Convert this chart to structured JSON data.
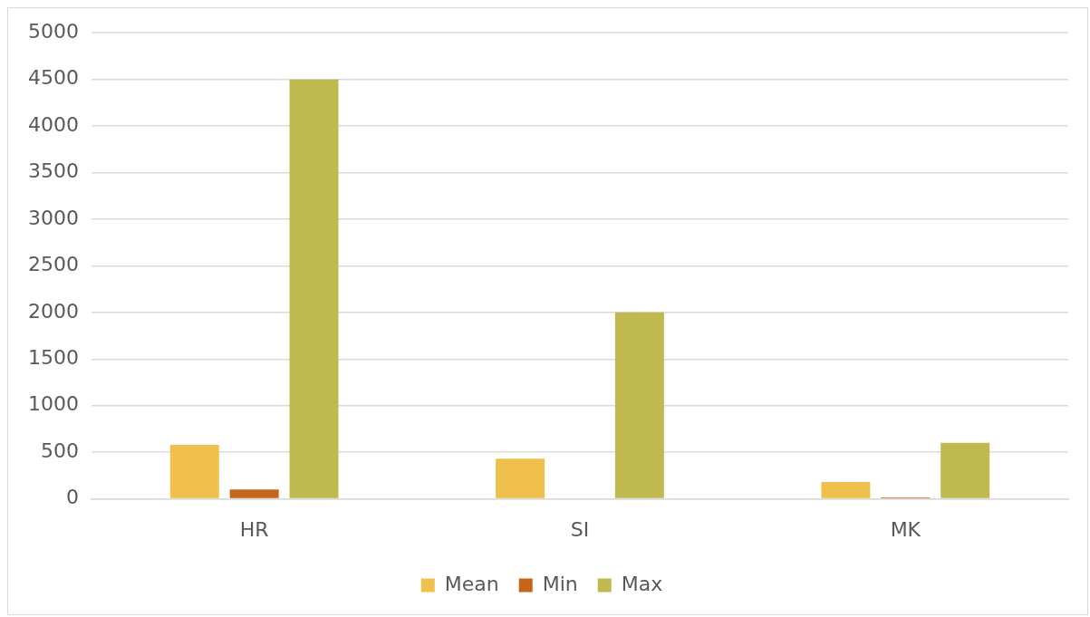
{
  "chart_data": {
    "type": "bar",
    "categories": [
      "HR",
      "SI",
      "MK"
    ],
    "series": [
      {
        "name": "Mean",
        "color": "#f0c04c",
        "values": [
          580,
          430,
          180
        ]
      },
      {
        "name": "Min",
        "color": "#c5651a",
        "values": [
          100,
          0,
          15
        ]
      },
      {
        "name": "Max",
        "color": "#c0b950",
        "values": [
          4500,
          2000,
          600
        ]
      }
    ],
    "ylim": [
      0,
      5000
    ],
    "yticks": [
      0,
      500,
      1000,
      1500,
      2000,
      2500,
      3000,
      3500,
      4000,
      4500,
      5000
    ],
    "grid": "y",
    "legend": "bottom"
  }
}
